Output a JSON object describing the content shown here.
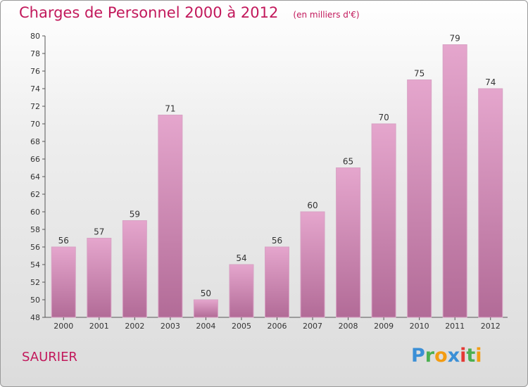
{
  "title": "Charges de Personnel 2000 à 2012",
  "subtitle": "(en milliers d'€)",
  "commune": "SAURIER",
  "logo": {
    "letters": [
      {
        "char": "P",
        "color": "#3b8fd6"
      },
      {
        "char": "r",
        "color": "#4caf50"
      },
      {
        "char": "o",
        "color": "#f39c12"
      },
      {
        "char": "x",
        "color": "#3b8fd6"
      },
      {
        "char": "i",
        "color": "#e53935"
      },
      {
        "char": "t",
        "color": "#4caf50"
      },
      {
        "char": "i",
        "color": "#f39c12"
      }
    ]
  },
  "colors": {
    "title": "#c2185b",
    "bar_top": "#e5a6cd",
    "bar_bottom": "#b26b97"
  },
  "chart_data": {
    "type": "bar",
    "categories": [
      "2000",
      "2001",
      "2002",
      "2003",
      "2004",
      "2005",
      "2006",
      "2007",
      "2008",
      "2009",
      "2010",
      "2011",
      "2012"
    ],
    "values": [
      56,
      57,
      59,
      71,
      50,
      54,
      56,
      60,
      65,
      70,
      75,
      79,
      74
    ],
    "ylim": [
      48,
      80
    ],
    "yticks": [
      48,
      50,
      52,
      54,
      56,
      58,
      60,
      62,
      64,
      66,
      68,
      70,
      72,
      74,
      76,
      78,
      80
    ],
    "grid": false,
    "legend": "none"
  }
}
